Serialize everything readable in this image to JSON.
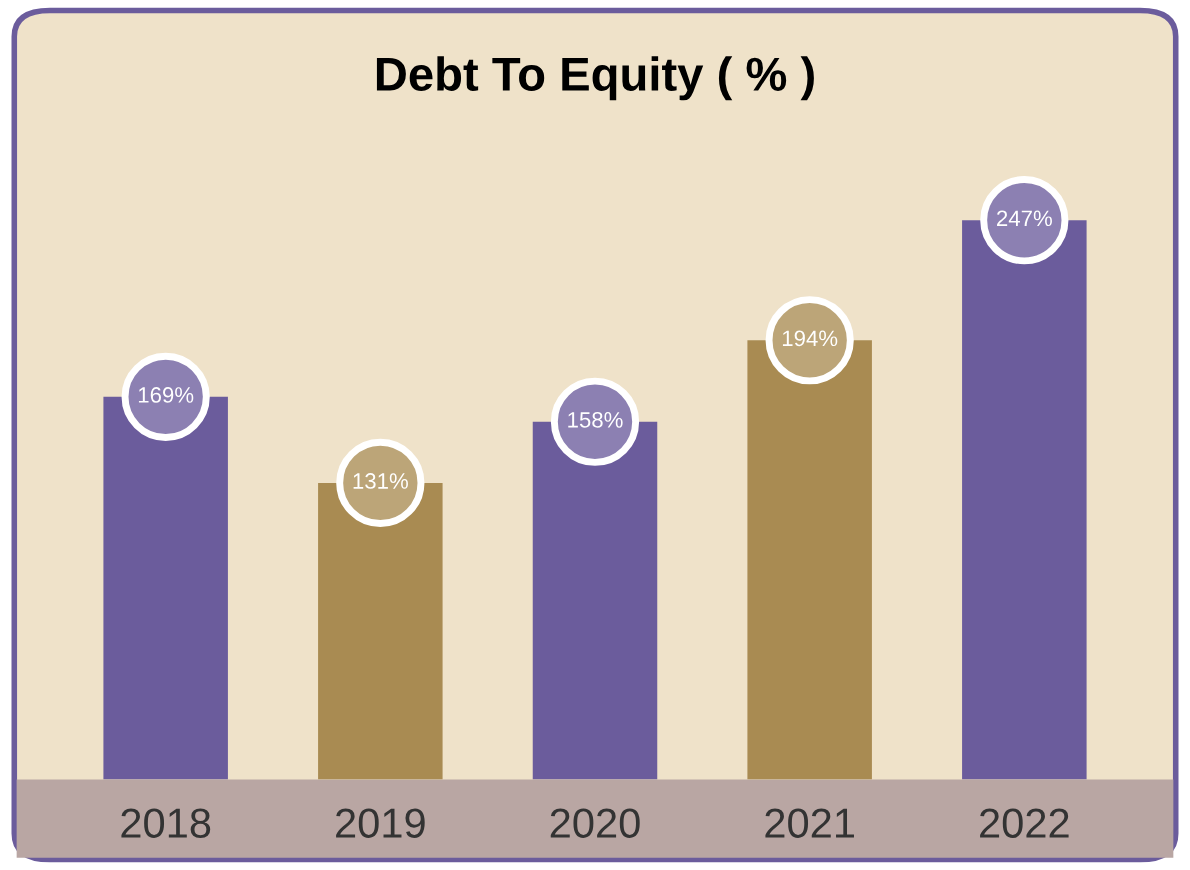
{
  "chart_data": {
    "type": "bar",
    "title": "Debt To Equity ( % )",
    "categories": [
      "2018",
      "2019",
      "2020",
      "2021",
      "2022"
    ],
    "values": [
      169,
      131,
      158,
      194,
      247
    ],
    "colors": [
      "#6b5c9c",
      "#a98b52",
      "#6b5c9c",
      "#a98b52",
      "#6b5c9c"
    ],
    "value_labels": [
      "169%",
      "131%",
      "158%",
      "194%",
      "247%"
    ],
    "grid": false,
    "legend": false
  }
}
